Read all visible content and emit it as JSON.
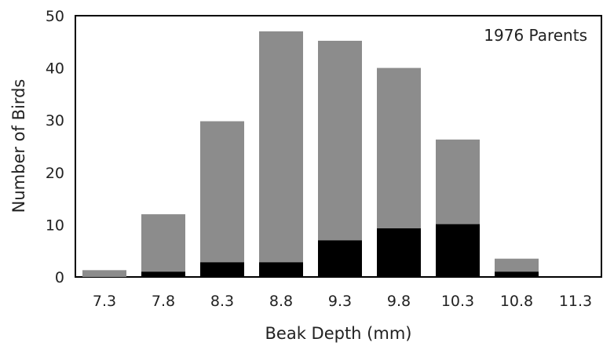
{
  "chart_data": {
    "type": "bar",
    "stacked": false,
    "overlay": true,
    "annotation": "1976 Parents",
    "xlabel": "Beak Depth (mm)",
    "ylabel": "Number of Birds",
    "categories": [
      "7.3",
      "7.8",
      "8.3",
      "8.8",
      "9.3",
      "9.8",
      "10.3",
      "10.8",
      "11.3"
    ],
    "ylim": [
      0,
      50
    ],
    "yticks": [
      "0",
      "10",
      "20",
      "30",
      "40",
      "50"
    ],
    "series": [
      {
        "color": "#8c8c8c",
        "values": [
          1.3,
          12,
          29.8,
          47,
          45.2,
          40,
          26.3,
          3.5,
          0
        ]
      },
      {
        "color": "#000000",
        "values": [
          0,
          1,
          2.8,
          2.8,
          7,
          9.3,
          10.1,
          1,
          0
        ]
      }
    ],
    "grid": false,
    "legend": "none"
  }
}
